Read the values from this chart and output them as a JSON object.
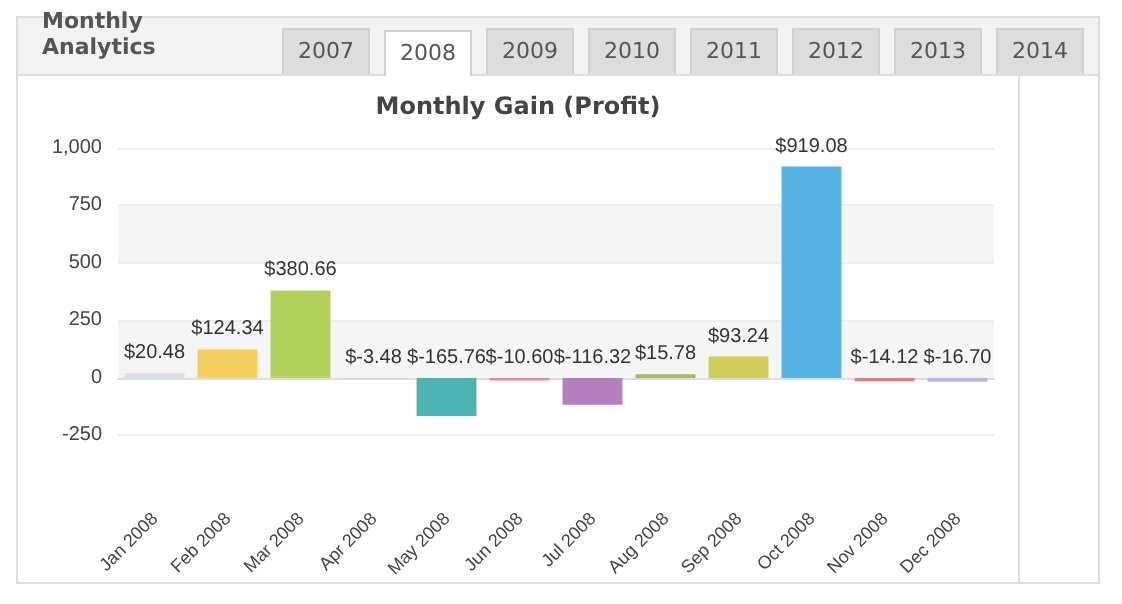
{
  "chart_data": {
    "type": "bar",
    "title": "Monthly Gain (Profit)",
    "annotations": [
      "Monthly Analytics",
      "2007",
      "2008",
      "2009",
      "2010",
      "2011",
      "2012",
      "2013",
      "2014"
    ],
    "categories": [
      "Jan 2008",
      "Feb 2008",
      "Mar 2008",
      "Apr 2008",
      "May 2008",
      "Jun 2008",
      "Jul 2008",
      "Aug 2008",
      "Sep 2008",
      "Oct 2008",
      "Nov 2008",
      "Dec 2008"
    ],
    "values": [
      20.48,
      124.34,
      380.66,
      -3.48,
      -165.76,
      -10.6,
      -116.32,
      15.78,
      93.24,
      919.08,
      -14.12,
      -16.7
    ],
    "value_labels": [
      "$20.48",
      "$124.34",
      "$380.66",
      "$-3.48",
      "$-165.76",
      "$-10.60",
      "$-116.32",
      "$15.78",
      "$93.24",
      "$919.08",
      "$-14.12",
      "$-16.70"
    ],
    "colors": [
      "#d5dfe8",
      "#f5cf5e",
      "#b2d15a",
      "#c8d4d8",
      "#4db3b5",
      "#e88a8a",
      "#b57fbf",
      "#a6b86a",
      "#cfcc5a",
      "#55b2e3",
      "#e87a7a",
      "#b9b5dc"
    ],
    "ylim": [
      -250,
      1000
    ],
    "yticks": [
      -250,
      0,
      250,
      500,
      750,
      {
        "value": 1000,
        "label": "1,000"
      }
    ],
    "grid": "y"
  }
}
